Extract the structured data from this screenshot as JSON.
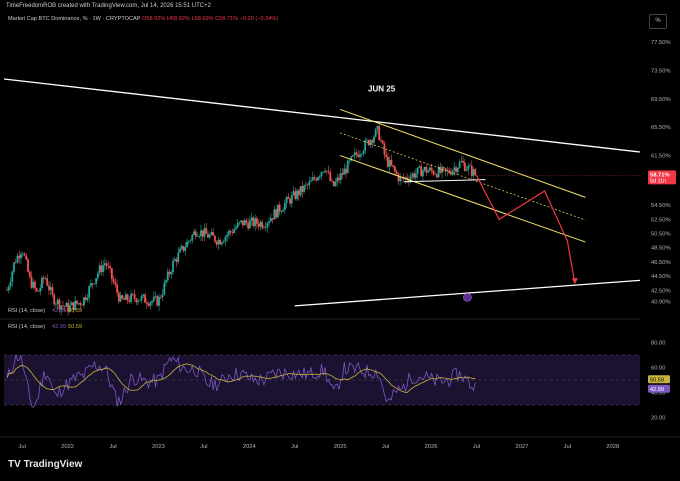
{
  "header": {
    "credit": "TimeFreedomROB created with TradingView.com, Jul 14, 2026 15:51 UTC+2",
    "pct_button": "%"
  },
  "legend": {
    "symbol": "Market Cap BTC Dominance, % · 1W · CRYPTOCAP",
    "o": "O58.92%",
    "h": "H58.92%",
    "l": "L58.69%",
    "c": "C58.71%",
    "change": "−0.20 (−0.34%)"
  },
  "price_badge": {
    "value": "58.71%",
    "countdown": "5d 11h"
  },
  "rsi_legends": [
    {
      "text": "RSI (14, close)",
      "v1": "42.99",
      "v2": "50.59"
    },
    {
      "text": "RSI (14, close)",
      "v1": "42.99",
      "v2": "50.59"
    }
  ],
  "rsi_badges": {
    "ma": "50.59",
    "rsi": "42.99"
  },
  "annotation": "JUN 25",
  "footer": {
    "logo": "TradingView"
  },
  "colors": {
    "up": "#26a69a",
    "down": "#ef5350",
    "rsi": "#7e57c2",
    "rsi_ma": "#c8b43c",
    "channel": "#f5e26a",
    "trend": "#ffffff",
    "arrow": "#f23645"
  },
  "chart_data": {
    "type": "candlestick",
    "title": "Market Cap BTC Dominance, %",
    "interval": "1W",
    "price_axis": {
      "ticks": [
        "77.50%",
        "73.50%",
        "69.50%",
        "65.50%",
        "61.50%",
        "58.71%",
        "54.50%",
        "52.50%",
        "50.50%",
        "48.50%",
        "46.50%",
        "44.50%",
        "42.50%",
        "40.90%"
      ],
      "range": [
        40.0,
        78.5
      ]
    },
    "time_axis": {
      "ticks": [
        "Jul",
        "2022",
        "Jul",
        "2023",
        "Jul",
        "2024",
        "Jul",
        "2025",
        "Jul",
        "2026",
        "Jul",
        "2027",
        "Jul",
        "2028"
      ]
    },
    "series_close_approx": [
      [
        "2021-05",
        42.5
      ],
      [
        "2021-06",
        46.5
      ],
      [
        "2021-07",
        48.5
      ],
      [
        "2021-08",
        44.0
      ],
      [
        "2021-09",
        42.0
      ],
      [
        "2021-10",
        44.5
      ],
      [
        "2021-11",
        41.5
      ],
      [
        "2021-12",
        40.5
      ],
      [
        "2022-01",
        40.0
      ],
      [
        "2022-03",
        41.0
      ],
      [
        "2022-05",
        45.0
      ],
      [
        "2022-06",
        46.5
      ],
      [
        "2022-08",
        41.0
      ],
      [
        "2022-10",
        41.5
      ],
      [
        "2022-12",
        41.0
      ],
      [
        "2023-01",
        41.0
      ],
      [
        "2023-03",
        46.5
      ],
      [
        "2023-06",
        51.0
      ],
      [
        "2023-09",
        49.5
      ],
      [
        "2023-12",
        52.0
      ],
      [
        "2024-03",
        52.0
      ],
      [
        "2024-06",
        55.0
      ],
      [
        "2024-09",
        57.5
      ],
      [
        "2024-11",
        60.0
      ],
      [
        "2024-12",
        57.0
      ],
      [
        "2025-03",
        61.5
      ],
      [
        "2025-06",
        65.0
      ],
      [
        "2025-07",
        61.0
      ],
      [
        "2025-09",
        58.0
      ],
      [
        "2025-12",
        59.5
      ],
      [
        "2026-03",
        59.0
      ],
      [
        "2026-05",
        60.5
      ],
      [
        "2026-07",
        58.71
      ]
    ],
    "rsi": {
      "name": "RSI (14, close)",
      "value": 42.99,
      "ma": 50.59,
      "axis_ticks": [
        "80.00",
        "60.00",
        "40.00",
        "20.00"
      ],
      "bands": [
        70,
        30
      ]
    },
    "annotations": {
      "label": "JUN 25",
      "projected_path": [
        [
          "2026-07",
          58.7
        ],
        [
          "2026-10",
          52.5
        ],
        [
          "2027-04",
          56.5
        ],
        [
          "2027-07",
          49.5
        ],
        [
          "2027-08",
          43.5
        ]
      ]
    }
  }
}
